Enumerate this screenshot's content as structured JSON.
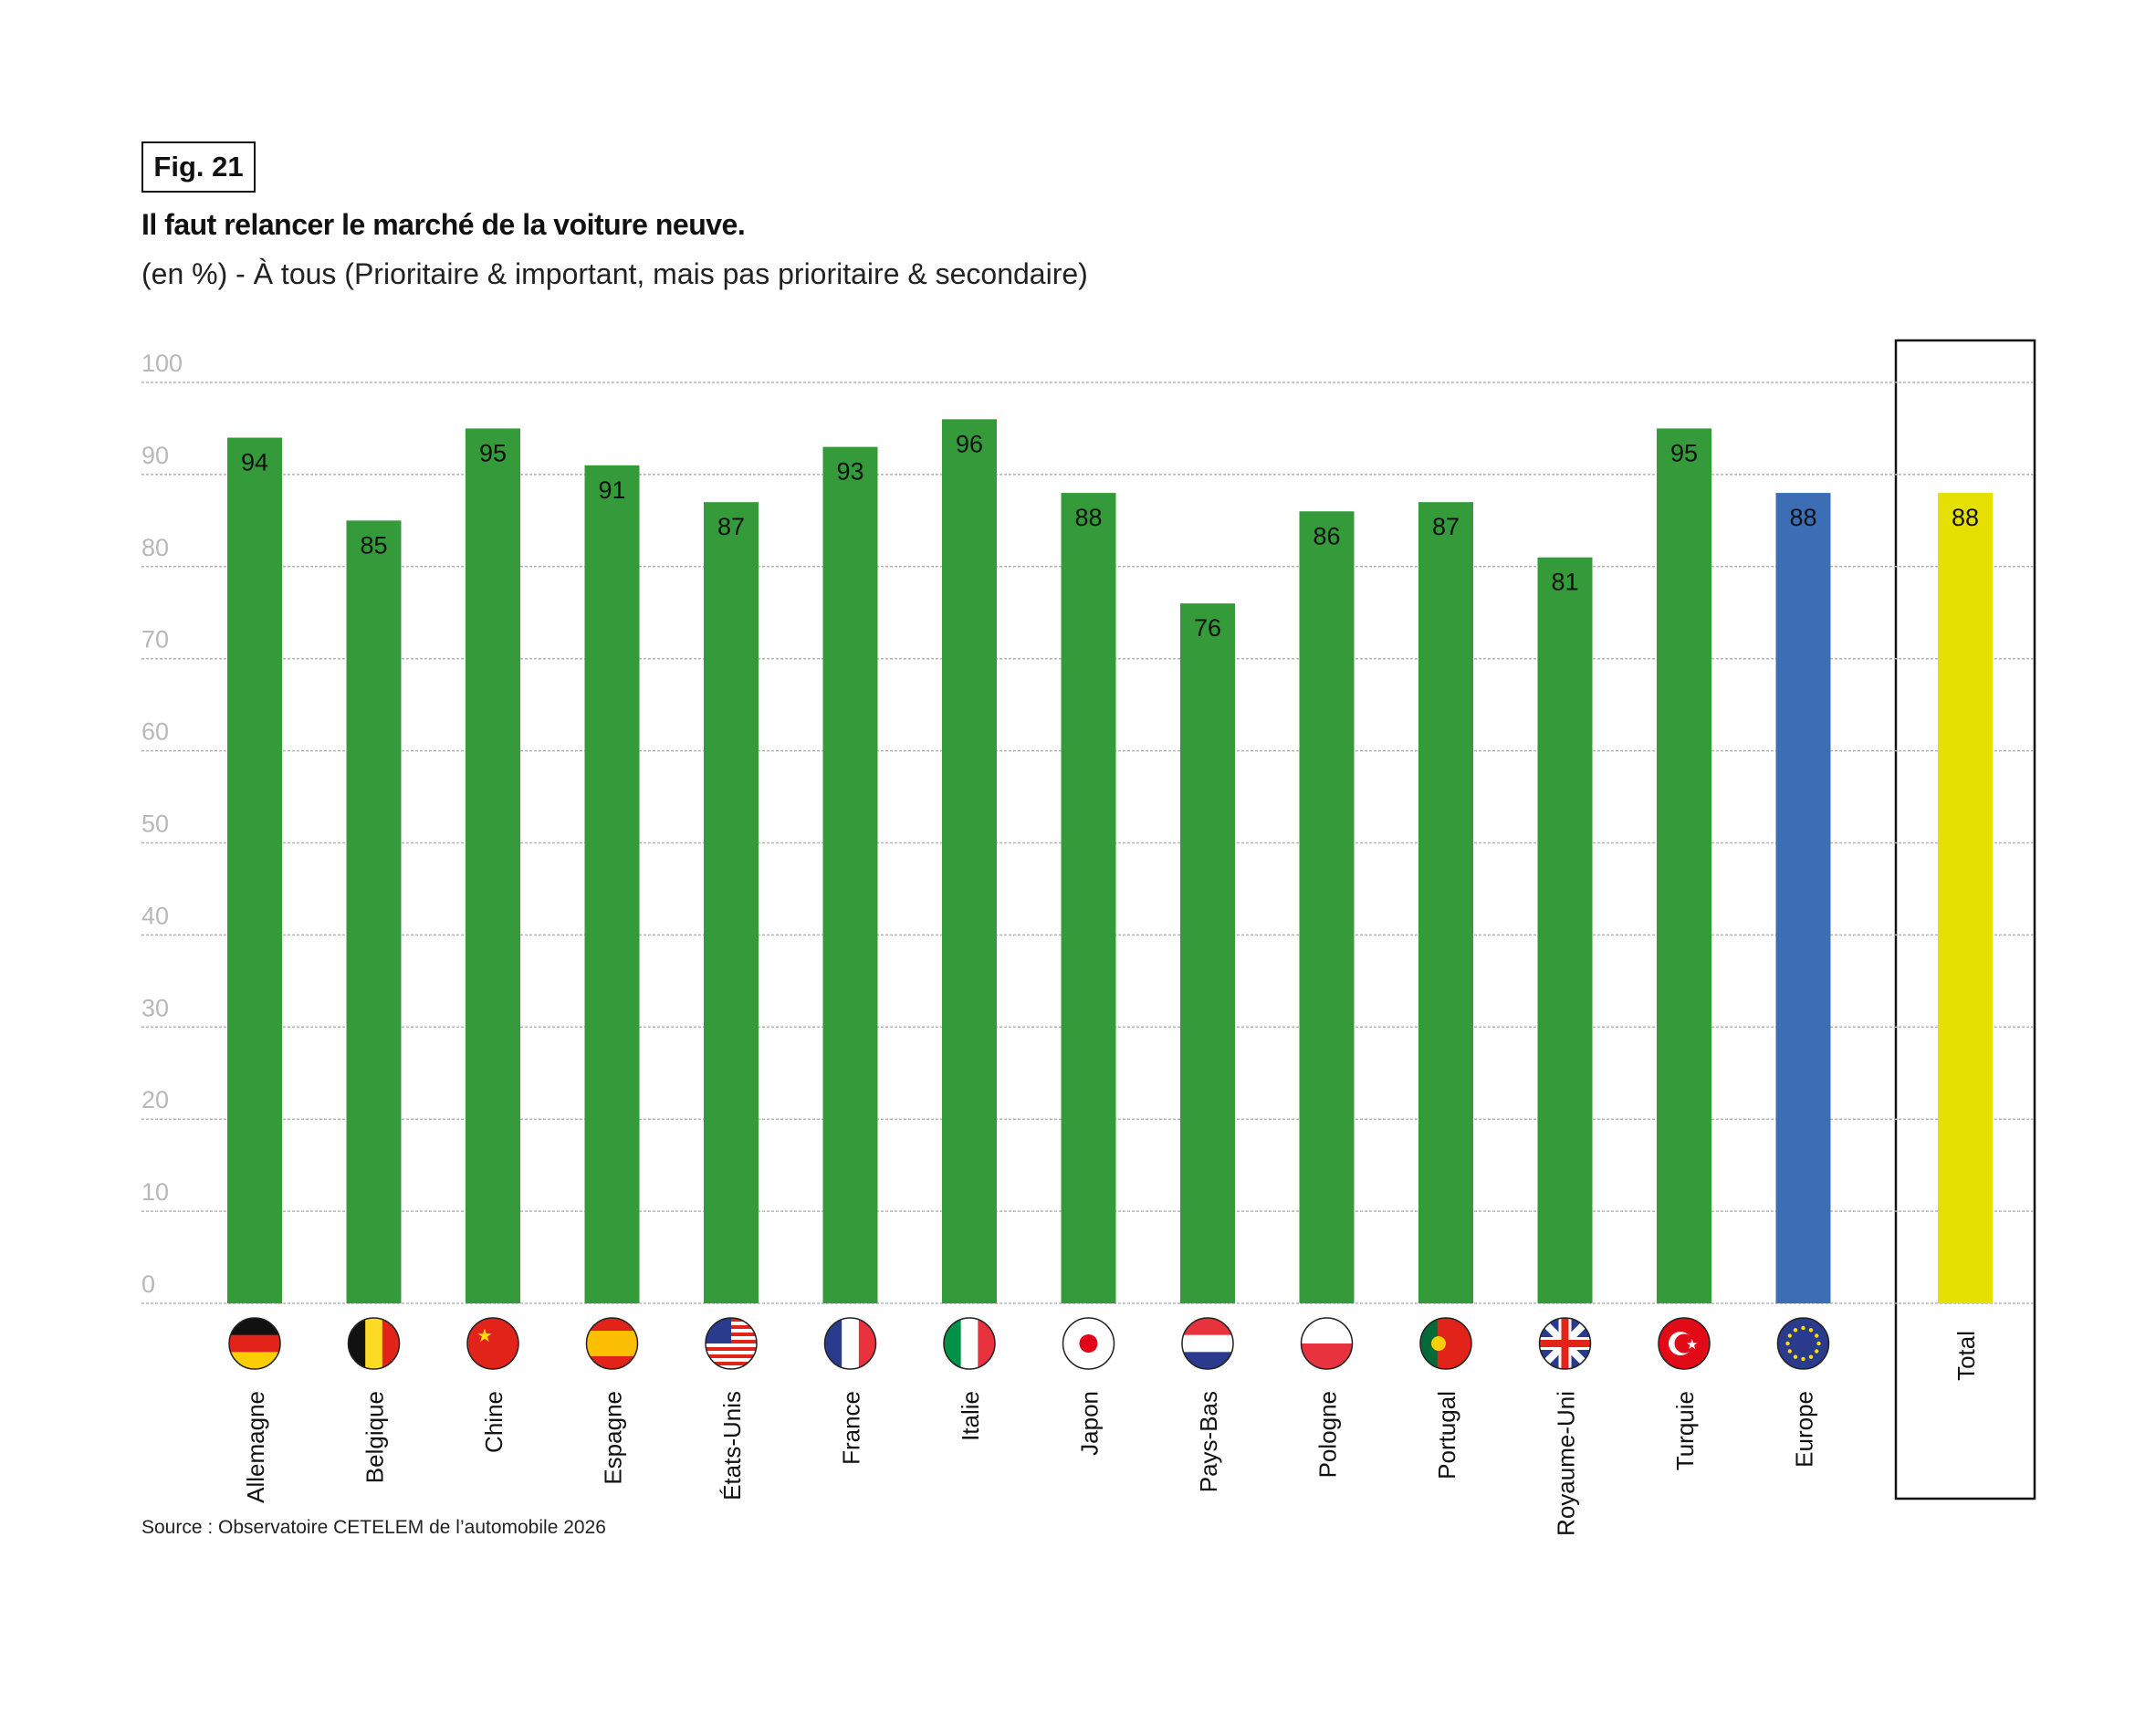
{
  "figure_label": "Fig. 21",
  "source": "Source : Observatoire CETELEM de l’automobile 2026",
  "chart_data": {
    "type": "bar",
    "title": "Il faut relancer le marché de la voiture neuve.",
    "subtitle": "(en %) - À tous (Prioritaire & important, mais pas prioritaire & secondaire)",
    "xlabel": "",
    "ylabel": "",
    "ylim": [
      0,
      100
    ],
    "yticks": [
      0,
      10,
      20,
      30,
      40,
      50,
      60,
      70,
      80,
      90,
      100
    ],
    "grid": true,
    "categories": [
      "Allemagne",
      "Belgique",
      "Chine",
      "Espagne",
      "États-Unis",
      "France",
      "Italie",
      "Japon",
      "Pays-Bas",
      "Pologne",
      "Portugal",
      "Royaume-Uni",
      "Turquie",
      "Europe",
      "Total"
    ],
    "values": [
      94,
      85,
      95,
      91,
      87,
      93,
      96,
      88,
      76,
      86,
      87,
      81,
      95,
      88,
      88
    ],
    "flags": [
      "de",
      "be",
      "cn",
      "es",
      "us",
      "fr",
      "it",
      "jp",
      "nl",
      "pl",
      "pt",
      "gb",
      "tr",
      "eu",
      null
    ],
    "colors": {
      "country": "#359a3a",
      "europe": "#3d6db5",
      "total": "#e6e000"
    }
  }
}
